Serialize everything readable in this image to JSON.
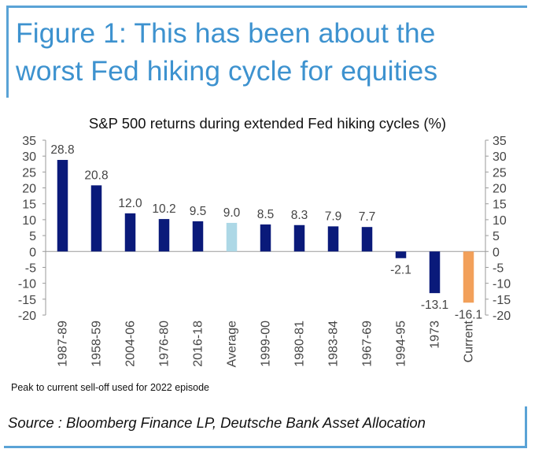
{
  "headline": {
    "line1": "Figure 1: This has been about the",
    "line2": "worst Fed hiking cycle for equities"
  },
  "footnote": "Peak to current sell-off used for 2022 episode",
  "source": "Source : Bloomberg Finance LP, Deutsche Bank Asset Allocation",
  "colors": {
    "accent": "#3d92cf",
    "bar_default": "#0a1a7a",
    "bar_average": "#add8e6",
    "bar_current": "#f2a05a"
  },
  "chart_data": {
    "type": "bar",
    "title": "S&P 500 returns during extended Fed hiking cycles (%)",
    "xlabel": "",
    "ylabel": "",
    "ylim": [
      -20,
      35
    ],
    "yticks": [
      35,
      30,
      25,
      20,
      15,
      10,
      5,
      0,
      -5,
      -10,
      -15,
      -20
    ],
    "dual_y_axis": true,
    "grid": false,
    "categories": [
      "1987-89",
      "1958-59",
      "2004-06",
      "1976-80",
      "2016-18",
      "Average",
      "1999-00",
      "1980-81",
      "1983-84",
      "1967-69",
      "1994-95",
      "1973",
      "Current"
    ],
    "values": [
      28.8,
      20.8,
      12.0,
      10.2,
      9.5,
      9.0,
      8.5,
      8.3,
      7.9,
      7.7,
      -2.1,
      -13.1,
      -16.1
    ],
    "value_labels": [
      "28.8",
      "20.8",
      "12.0",
      "10.2",
      "9.5",
      "9.0",
      "8.5",
      "8.3",
      "7.9",
      "7.7",
      "-2.1",
      "-13.1",
      "-16.1"
    ],
    "bar_colors": [
      "#0a1a7a",
      "#0a1a7a",
      "#0a1a7a",
      "#0a1a7a",
      "#0a1a7a",
      "#add8e6",
      "#0a1a7a",
      "#0a1a7a",
      "#0a1a7a",
      "#0a1a7a",
      "#0a1a7a",
      "#0a1a7a",
      "#f2a05a"
    ]
  }
}
